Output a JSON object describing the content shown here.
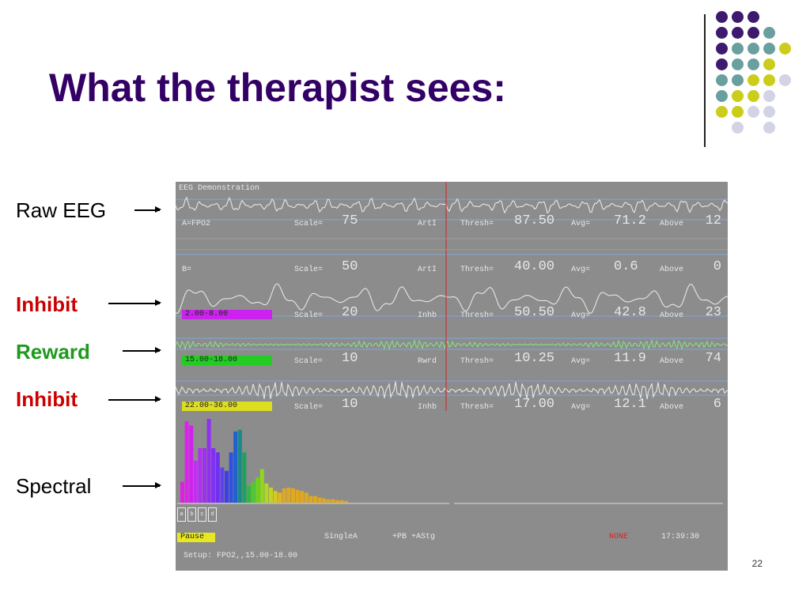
{
  "slide": {
    "title": "What the therapist sees:",
    "page_number": "22",
    "dot_colors": {
      "purple": "#3d1a6e",
      "teal": "#6a9fa0",
      "yellow": "#cccc1a",
      "lavender": "#d3d3e6"
    }
  },
  "annotations": {
    "raw_eeg": "Raw EEG",
    "inhibit_1": "Inhibit",
    "reward": "Reward",
    "inhibit_2": "Inhibit",
    "spectral": "Spectral"
  },
  "screen": {
    "window_title": "EEG Demonstration",
    "channels": [
      {
        "band": "A=FPO2",
        "scale_label": "Scale=",
        "scale": "75",
        "mode": "ArtI",
        "thresh_label": "Thresh=",
        "thresh": "87.50",
        "avg_label": "Avg=",
        "avg": "71.2",
        "above_label": "Above",
        "above": "12"
      },
      {
        "band": "B=",
        "scale_label": "Scale=",
        "scale": "50",
        "mode": "ArtI",
        "thresh_label": "Thresh=",
        "thresh": "40.00",
        "avg_label": "Avg=",
        "avg": "0.6",
        "above_label": "Above",
        "above": "0"
      },
      {
        "band": "2.00-8.00",
        "scale_label": "Scale=",
        "scale": "20",
        "mode": "Inhb",
        "thresh_label": "Thresh=",
        "thresh": "50.50",
        "avg_label": "Avg=",
        "avg": "42.8",
        "above_label": "Above",
        "above": "23"
      },
      {
        "band": "15.00-18.00",
        "scale_label": "Scale=",
        "scale": "10",
        "mode": "Rwrd",
        "thresh_label": "Thresh=",
        "thresh": "10.25",
        "avg_label": "Avg=",
        "avg": "11.9",
        "above_label": "Above",
        "above": "74"
      },
      {
        "band": "22.00-36.00",
        "scale_label": "Scale=",
        "scale": "10",
        "mode": "Inhb",
        "thresh_label": "Thresh=",
        "thresh": "17.00",
        "avg_label": "Avg=",
        "avg": "12.1",
        "above_label": "Above",
        "above": "6"
      }
    ],
    "band_tag_colors": [
      "#cc22ee",
      "#22cc22",
      "#dddd22"
    ],
    "status": {
      "pause": "Pause",
      "mode": "SingleA",
      "options": "+PB +AStg",
      "none": "NONE",
      "time": "17:39:30",
      "setup": "Setup: FPO2,,15.00-18.00"
    },
    "key_buttons": [
      "a",
      "b",
      "c",
      "d"
    ],
    "spectrum_colors": [
      "#e020e0",
      "#dd22ee",
      "#d022ee",
      "#c030f0",
      "#b030f0",
      "#a030f0",
      "#9030f0",
      "#8030f0",
      "#7030f0",
      "#6040f0",
      "#4040e0",
      "#3050e0",
      "#2060d0",
      "#1a8a88",
      "#20a060",
      "#30b840",
      "#50c830",
      "#70d020",
      "#90d820",
      "#b0d820",
      "#c8d020",
      "#d8c820",
      "#e0b820",
      "#e0a820"
    ],
    "spectrum_levels": [
      0.25,
      0.97,
      0.92,
      0.5,
      0.65,
      0.65,
      1.0,
      0.65,
      0.6,
      0.42,
      0.38,
      0.6,
      0.85,
      0.87,
      0.6,
      0.2,
      0.25,
      0.3,
      0.4,
      0.23,
      0.18,
      0.14,
      0.12,
      0.17,
      0.18,
      0.17,
      0.15,
      0.14,
      0.12,
      0.08,
      0.08,
      0.06,
      0.05,
      0.04,
      0.04,
      0.03,
      0.03,
      0.02
    ]
  }
}
